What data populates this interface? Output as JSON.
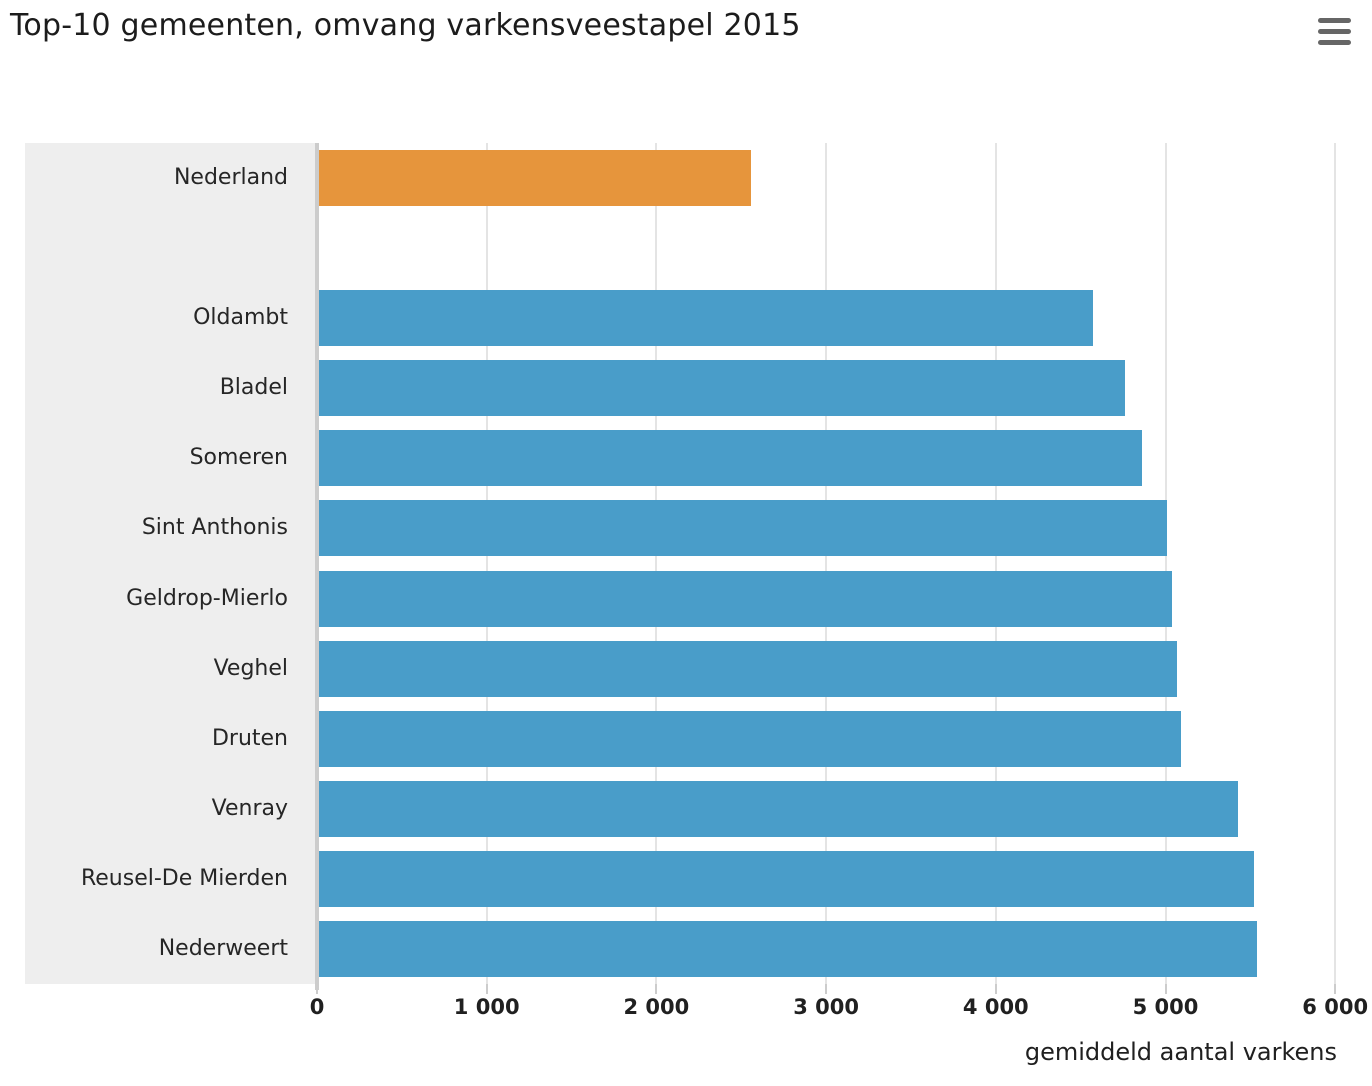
{
  "header": {
    "title": "Top-10 gemeenten, omvang varkensveestapel 2015"
  },
  "export_menu": {
    "icon": "hamburger-icon",
    "tooltip": "Chart context menu"
  },
  "chart_data": {
    "type": "bar",
    "orientation": "horizontal",
    "title": "Top-10 gemeenten, omvang varkensveestapel 2015",
    "xlabel": "gemiddeld aantal varkens",
    "ylabel": "",
    "xlim": [
      0,
      6000
    ],
    "grid": true,
    "legend": false,
    "plot_background": "#ffffff",
    "label_panel_background": "#eeeeee",
    "colors": {
      "highlight": "#e6953c",
      "series": "#499dc9",
      "gridline": "#e4e4e4",
      "axis_line": "#cccccc",
      "text": "#262626"
    },
    "xticks": [
      {
        "value": 0,
        "label": "0"
      },
      {
        "value": 1000,
        "label": "1 000"
      },
      {
        "value": 2000,
        "label": "2 000"
      },
      {
        "value": 3000,
        "label": "3 000"
      },
      {
        "value": 4000,
        "label": "4 000"
      },
      {
        "value": 5000,
        "label": "5 000"
      },
      {
        "value": 6000,
        "label": "6 000"
      }
    ],
    "categories": [
      "Nederland",
      "",
      "Oldambt",
      "Bladel",
      "Someren",
      "Sint Anthonis",
      "Geldrop-Mierlo",
      "Veghel",
      "Druten",
      "Venray",
      "Reusel-De Mierden",
      "Nederweert"
    ],
    "bars": [
      {
        "category": "Nederland",
        "value": 2560,
        "role": "highlight"
      },
      {
        "category": "",
        "value": null,
        "role": "spacer"
      },
      {
        "category": "Oldambt",
        "value": 4570,
        "role": "series"
      },
      {
        "category": "Bladel",
        "value": 4760,
        "role": "series"
      },
      {
        "category": "Someren",
        "value": 4860,
        "role": "series"
      },
      {
        "category": "Sint Anthonis",
        "value": 5010,
        "role": "series"
      },
      {
        "category": "Geldrop-Mierlo",
        "value": 5040,
        "role": "series"
      },
      {
        "category": "Veghel",
        "value": 5070,
        "role": "series"
      },
      {
        "category": "Druten",
        "value": 5090,
        "role": "series"
      },
      {
        "category": "Venray",
        "value": 5430,
        "role": "series"
      },
      {
        "category": "Reusel-De Mierden",
        "value": 5520,
        "role": "series"
      },
      {
        "category": "Nederweert",
        "value": 5540,
        "role": "series"
      }
    ]
  }
}
